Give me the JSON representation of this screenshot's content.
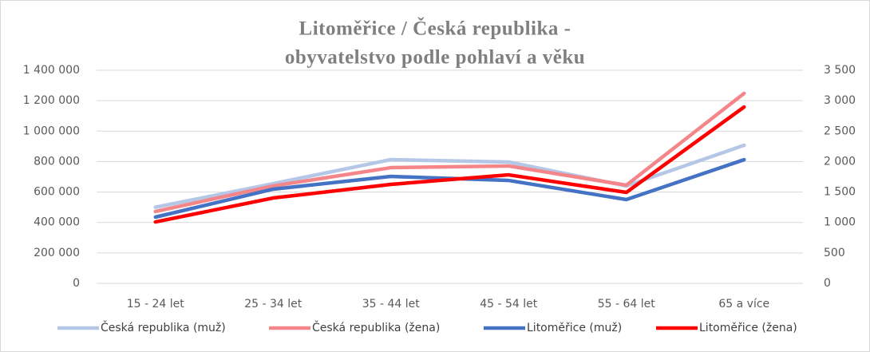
{
  "chart_data": {
    "type": "line",
    "title": [
      "Litoměřice / Česká republika -",
      "obyvatelstvo podle pohlaví a věku"
    ],
    "categories": [
      "15 - 24 let",
      "25 - 34 let",
      "35 - 44 let",
      "45 - 54 let",
      "55 - 64 let",
      "65 a více"
    ],
    "series": [
      {
        "name": "Česká republika (muž)",
        "color": "#b4c7e7",
        "values": [
          500000,
          655000,
          813000,
          797000,
          640000,
          907000
        ]
      },
      {
        "name": "Česká republika (žena)",
        "color": "#f4868a",
        "values": [
          472000,
          640000,
          760000,
          771000,
          645000,
          1248000
        ]
      },
      {
        "name": "Litoměřice (muž)",
        "color": "#4472c4",
        "axis": "y2",
        "values": [
          1088,
          1547,
          1756,
          1690,
          1376,
          2031
        ]
      },
      {
        "name": "Litoměřice (žena)",
        "color": "#ff0000",
        "axis": "y2",
        "values": [
          1009,
          1402,
          1625,
          1782,
          1494,
          2896
        ]
      }
    ],
    "ylim": [
      0,
      1400000
    ],
    "yticks": [
      0,
      {
        "value": 200000,
        "label": "200 000"
      },
      {
        "value": 400000,
        "label": "400 000"
      },
      {
        "value": 600000,
        "label": "600 000"
      },
      {
        "value": 800000,
        "label": "800 000"
      },
      {
        "value": 1000000,
        "label": "1 000 000"
      },
      {
        "value": 1200000,
        "label": "1 200 000"
      },
      {
        "value": 1400000,
        "label": "1 400 000"
      }
    ],
    "y2lim": [
      0,
      3500
    ],
    "y2ticks": [
      0,
      500,
      {
        "value": 1000,
        "label": "1 000"
      },
      {
        "value": 1500,
        "label": "1 500"
      },
      {
        "value": 2000,
        "label": "2 000"
      },
      {
        "value": 2500,
        "label": "2 500"
      },
      {
        "value": 3000,
        "label": "3 000"
      },
      {
        "value": 3500,
        "label": "3 500"
      }
    ],
    "grid": true,
    "legend": "bottom"
  }
}
